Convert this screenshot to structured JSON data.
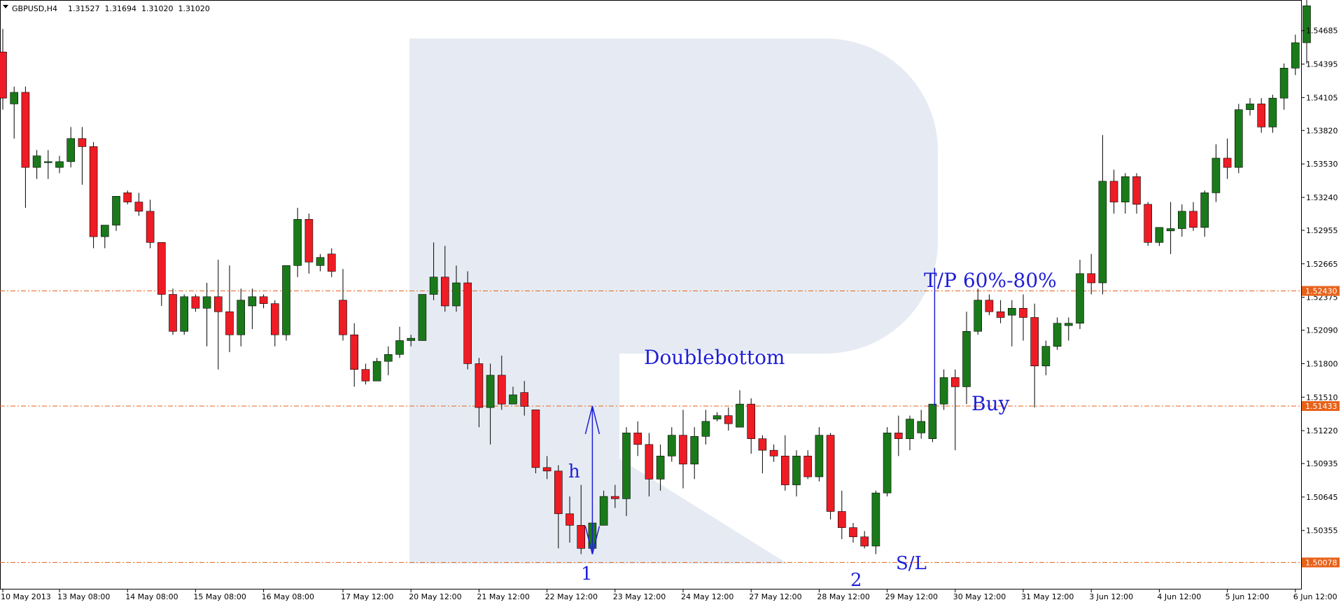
{
  "header": {
    "symbol": "GBPUSD,H4",
    "ohlc": "1.31527  1.31694  1.31020  1.31020"
  },
  "colors": {
    "bull": "#1a7a1a",
    "bear": "#ee1c24",
    "level_line": "#e8621a",
    "annotation": "#1f1fd6",
    "watermark": "#e6ebf3"
  },
  "chart_data": {
    "type": "candlestick",
    "title": "",
    "symbol": "GBPUSD",
    "timeframe": "H4",
    "ylim": [
      1.4985,
      1.5495
    ],
    "y_ticks": [
      "1.54685",
      "1.54395",
      "1.54105",
      "1.53820",
      "1.53530",
      "1.53240",
      "1.52955",
      "1.52665",
      "1.52375",
      "1.52090",
      "1.51800",
      "1.51510",
      "1.51220",
      "1.50935",
      "1.50645",
      "1.50355"
    ],
    "x_labels": [
      {
        "label": "10 May 2013",
        "bar": 0
      },
      {
        "label": "13 May 08:00",
        "bar": 5
      },
      {
        "label": "14 May 08:00",
        "bar": 11
      },
      {
        "label": "15 May 08:00",
        "bar": 17
      },
      {
        "label": "16 May 08:00",
        "bar": 23
      },
      {
        "label": "17 May 12:00",
        "bar": 30
      },
      {
        "label": "20 May 12:00",
        "bar": 36
      },
      {
        "label": "21 May 12:00",
        "bar": 42
      },
      {
        "label": "22 May 12:00",
        "bar": 48
      },
      {
        "label": "23 May 12:00",
        "bar": 54
      },
      {
        "label": "24 May 12:00",
        "bar": 60
      },
      {
        "label": "27 May 12:00",
        "bar": 66
      },
      {
        "label": "28 May 12:00",
        "bar": 72
      },
      {
        "label": "29 May 12:00",
        "bar": 78
      },
      {
        "label": "30 May 12:00",
        "bar": 84
      },
      {
        "label": "31 May 12:00",
        "bar": 90
      },
      {
        "label": "3 Jun 12:00",
        "bar": 96
      },
      {
        "label": "4 Jun 12:00",
        "bar": 102
      },
      {
        "label": "5 Jun 12:00",
        "bar": 108
      },
      {
        "label": "6 Jun 12:00",
        "bar": 114
      }
    ],
    "levels": [
      {
        "price": 1.5243,
        "label": "1.52430"
      },
      {
        "price": 1.51433,
        "label": "1.51433"
      },
      {
        "price": 1.50078,
        "label": "1.50078"
      }
    ],
    "candles": [
      {
        "o": 1.545,
        "h": 1.547,
        "l": 1.54,
        "c": 1.541
      },
      {
        "o": 1.5405,
        "h": 1.542,
        "l": 1.5375,
        "c": 1.5415
      },
      {
        "o": 1.5415,
        "h": 1.542,
        "l": 1.5315,
        "c": 1.535
      },
      {
        "o": 1.535,
        "h": 1.5365,
        "l": 1.534,
        "c": 1.536
      },
      {
        "o": 1.5355,
        "h": 1.5365,
        "l": 1.534,
        "c": 1.5355
      },
      {
        "o": 1.535,
        "h": 1.536,
        "l": 1.5345,
        "c": 1.5355
      },
      {
        "o": 1.5355,
        "h": 1.5385,
        "l": 1.535,
        "c": 1.5375
      },
      {
        "o": 1.5375,
        "h": 1.5385,
        "l": 1.5335,
        "c": 1.5368
      },
      {
        "o": 1.5368,
        "h": 1.5372,
        "l": 1.528,
        "c": 1.529
      },
      {
        "o": 1.529,
        "h": 1.53,
        "l": 1.528,
        "c": 1.53
      },
      {
        "o": 1.53,
        "h": 1.5325,
        "l": 1.5295,
        "c": 1.5325
      },
      {
        "o": 1.5328,
        "h": 1.533,
        "l": 1.5318,
        "c": 1.532
      },
      {
        "o": 1.532,
        "h": 1.5328,
        "l": 1.5308,
        "c": 1.5312
      },
      {
        "o": 1.5312,
        "h": 1.5322,
        "l": 1.528,
        "c": 1.5285
      },
      {
        "o": 1.5285,
        "h": 1.5285,
        "l": 1.523,
        "c": 1.524
      },
      {
        "o": 1.524,
        "h": 1.5245,
        "l": 1.5205,
        "c": 1.5208
      },
      {
        "o": 1.5208,
        "h": 1.524,
        "l": 1.5205,
        "c": 1.5238
      },
      {
        "o": 1.5238,
        "h": 1.524,
        "l": 1.5225,
        "c": 1.5228
      },
      {
        "o": 1.5228,
        "h": 1.525,
        "l": 1.5195,
        "c": 1.5238
      },
      {
        "o": 1.5238,
        "h": 1.527,
        "l": 1.5175,
        "c": 1.5225
      },
      {
        "o": 1.5225,
        "h": 1.5265,
        "l": 1.519,
        "c": 1.5205
      },
      {
        "o": 1.5205,
        "h": 1.5245,
        "l": 1.5195,
        "c": 1.5235
      },
      {
        "o": 1.523,
        "h": 1.5245,
        "l": 1.521,
        "c": 1.5238
      },
      {
        "o": 1.5238,
        "h": 1.524,
        "l": 1.5228,
        "c": 1.5232
      },
      {
        "o": 1.5232,
        "h": 1.5235,
        "l": 1.5195,
        "c": 1.5205
      },
      {
        "o": 1.5205,
        "h": 1.5265,
        "l": 1.52,
        "c": 1.5265
      },
      {
        "o": 1.5265,
        "h": 1.5315,
        "l": 1.5255,
        "c": 1.5305
      },
      {
        "o": 1.5305,
        "h": 1.531,
        "l": 1.5258,
        "c": 1.5268
      },
      {
        "o": 1.5265,
        "h": 1.5275,
        "l": 1.526,
        "c": 1.5272
      },
      {
        "o": 1.5275,
        "h": 1.528,
        "l": 1.5255,
        "c": 1.526
      },
      {
        "o": 1.5235,
        "h": 1.5262,
        "l": 1.52,
        "c": 1.5205
      },
      {
        "o": 1.5205,
        "h": 1.5215,
        "l": 1.516,
        "c": 1.5175
      },
      {
        "o": 1.5175,
        "h": 1.518,
        "l": 1.5162,
        "c": 1.5165
      },
      {
        "o": 1.5165,
        "h": 1.5185,
        "l": 1.5165,
        "c": 1.5182
      },
      {
        "o": 1.5182,
        "h": 1.5195,
        "l": 1.517,
        "c": 1.5188
      },
      {
        "o": 1.5188,
        "h": 1.5212,
        "l": 1.5185,
        "c": 1.52
      },
      {
        "o": 1.52,
        "h": 1.5205,
        "l": 1.5195,
        "c": 1.5202
      },
      {
        "o": 1.52,
        "h": 1.524,
        "l": 1.52,
        "c": 1.524
      },
      {
        "o": 1.524,
        "h": 1.5285,
        "l": 1.5235,
        "c": 1.5255
      },
      {
        "o": 1.5255,
        "h": 1.5282,
        "l": 1.5225,
        "c": 1.523
      },
      {
        "o": 1.523,
        "h": 1.5265,
        "l": 1.5225,
        "c": 1.525
      },
      {
        "o": 1.525,
        "h": 1.526,
        "l": 1.5175,
        "c": 1.518
      },
      {
        "o": 1.518,
        "h": 1.5185,
        "l": 1.5125,
        "c": 1.5142
      },
      {
        "o": 1.5142,
        "h": 1.518,
        "l": 1.511,
        "c": 1.517
      },
      {
        "o": 1.517,
        "h": 1.5187,
        "l": 1.514,
        "c": 1.5145
      },
      {
        "o": 1.5145,
        "h": 1.516,
        "l": 1.515,
        "c": 1.5153
      },
      {
        "o": 1.5155,
        "h": 1.5165,
        "l": 1.5135,
        "c": 1.5143
      },
      {
        "o": 1.514,
        "h": 1.514,
        "l": 1.5085,
        "c": 1.509
      },
      {
        "o": 1.509,
        "h": 1.51,
        "l": 1.508,
        "c": 1.5087
      },
      {
        "o": 1.5087,
        "h": 1.5092,
        "l": 1.502,
        "c": 1.505
      },
      {
        "o": 1.505,
        "h": 1.5065,
        "l": 1.5025,
        "c": 1.504
      },
      {
        "o": 1.504,
        "h": 1.5075,
        "l": 1.5015,
        "c": 1.502
      },
      {
        "o": 1.502,
        "h": 1.5045,
        "l": 1.502,
        "c": 1.5042
      },
      {
        "o": 1.504,
        "h": 1.507,
        "l": 1.504,
        "c": 1.5065
      },
      {
        "o": 1.5065,
        "h": 1.5075,
        "l": 1.5055,
        "c": 1.5063
      },
      {
        "o": 1.5063,
        "h": 1.5125,
        "l": 1.5048,
        "c": 1.512
      },
      {
        "o": 1.512,
        "h": 1.513,
        "l": 1.51,
        "c": 1.511
      },
      {
        "o": 1.511,
        "h": 1.512,
        "l": 1.5065,
        "c": 1.508
      },
      {
        "o": 1.508,
        "h": 1.511,
        "l": 1.507,
        "c": 1.51
      },
      {
        "o": 1.51,
        "h": 1.5125,
        "l": 1.5095,
        "c": 1.5118
      },
      {
        "o": 1.5118,
        "h": 1.514,
        "l": 1.5072,
        "c": 1.5093
      },
      {
        "o": 1.5093,
        "h": 1.5125,
        "l": 1.508,
        "c": 1.5117
      },
      {
        "o": 1.5117,
        "h": 1.514,
        "l": 1.511,
        "c": 1.513
      },
      {
        "o": 1.5132,
        "h": 1.5138,
        "l": 1.513,
        "c": 1.5135
      },
      {
        "o": 1.5135,
        "h": 1.5142,
        "l": 1.5122,
        "c": 1.5128
      },
      {
        "o": 1.5125,
        "h": 1.5157,
        "l": 1.5125,
        "c": 1.5145
      },
      {
        "o": 1.5145,
        "h": 1.515,
        "l": 1.5102,
        "c": 1.5115
      },
      {
        "o": 1.5115,
        "h": 1.5118,
        "l": 1.5085,
        "c": 1.5105
      },
      {
        "o": 1.5105,
        "h": 1.511,
        "l": 1.5095,
        "c": 1.51
      },
      {
        "o": 1.51,
        "h": 1.5118,
        "l": 1.507,
        "c": 1.5075
      },
      {
        "o": 1.5075,
        "h": 1.5105,
        "l": 1.5065,
        "c": 1.51
      },
      {
        "o": 1.51,
        "h": 1.5105,
        "l": 1.508,
        "c": 1.5082
      },
      {
        "o": 1.5082,
        "h": 1.5125,
        "l": 1.5078,
        "c": 1.5118
      },
      {
        "o": 1.5118,
        "h": 1.512,
        "l": 1.5045,
        "c": 1.5052
      },
      {
        "o": 1.5052,
        "h": 1.507,
        "l": 1.5028,
        "c": 1.5038
      },
      {
        "o": 1.5038,
        "h": 1.5042,
        "l": 1.5025,
        "c": 1.503
      },
      {
        "o": 1.503,
        "h": 1.5035,
        "l": 1.502,
        "c": 1.5022
      },
      {
        "o": 1.5022,
        "h": 1.507,
        "l": 1.5015,
        "c": 1.5068
      },
      {
        "o": 1.5068,
        "h": 1.5125,
        "l": 1.5065,
        "c": 1.512
      },
      {
        "o": 1.512,
        "h": 1.5135,
        "l": 1.51,
        "c": 1.5115
      },
      {
        "o": 1.5115,
        "h": 1.5135,
        "l": 1.5105,
        "c": 1.5132
      },
      {
        "o": 1.512,
        "h": 1.514,
        "l": 1.5115,
        "c": 1.513
      },
      {
        "o": 1.5115,
        "h": 1.514,
        "l": 1.5112,
        "c": 1.5145
      },
      {
        "o": 1.5145,
        "h": 1.5175,
        "l": 1.514,
        "c": 1.5168
      },
      {
        "o": 1.5168,
        "h": 1.5175,
        "l": 1.5105,
        "c": 1.516
      },
      {
        "o": 1.516,
        "h": 1.5225,
        "l": 1.5145,
        "c": 1.5208
      },
      {
        "o": 1.5208,
        "h": 1.5245,
        "l": 1.5205,
        "c": 1.5235
      },
      {
        "o": 1.5235,
        "h": 1.524,
        "l": 1.5222,
        "c": 1.5225
      },
      {
        "o": 1.5225,
        "h": 1.5235,
        "l": 1.5215,
        "c": 1.522
      },
      {
        "o": 1.5222,
        "h": 1.5235,
        "l": 1.5195,
        "c": 1.5228
      },
      {
        "o": 1.5228,
        "h": 1.524,
        "l": 1.52,
        "c": 1.522
      },
      {
        "o": 1.522,
        "h": 1.5232,
        "l": 1.5142,
        "c": 1.5178
      },
      {
        "o": 1.5178,
        "h": 1.52,
        "l": 1.517,
        "c": 1.5195
      },
      {
        "o": 1.5195,
        "h": 1.522,
        "l": 1.5192,
        "c": 1.5215
      },
      {
        "o": 1.5213,
        "h": 1.522,
        "l": 1.52,
        "c": 1.5215
      },
      {
        "o": 1.5215,
        "h": 1.527,
        "l": 1.521,
        "c": 1.5258
      },
      {
        "o": 1.5258,
        "h": 1.5275,
        "l": 1.524,
        "c": 1.525
      },
      {
        "o": 1.525,
        "h": 1.5378,
        "l": 1.524,
        "c": 1.5338
      },
      {
        "o": 1.5338,
        "h": 1.5348,
        "l": 1.531,
        "c": 1.532
      },
      {
        "o": 1.532,
        "h": 1.5345,
        "l": 1.531,
        "c": 1.5342
      },
      {
        "o": 1.5342,
        "h": 1.5345,
        "l": 1.531,
        "c": 1.5318
      },
      {
        "o": 1.5318,
        "h": 1.532,
        "l": 1.5282,
        "c": 1.5285
      },
      {
        "o": 1.5285,
        "h": 1.5298,
        "l": 1.5282,
        "c": 1.5298
      },
      {
        "o": 1.5295,
        "h": 1.532,
        "l": 1.5275,
        "c": 1.5297
      },
      {
        "o": 1.5297,
        "h": 1.5318,
        "l": 1.529,
        "c": 1.5312
      },
      {
        "o": 1.5312,
        "h": 1.532,
        "l": 1.5295,
        "c": 1.5298
      },
      {
        "o": 1.5298,
        "h": 1.533,
        "l": 1.529,
        "c": 1.5328
      },
      {
        "o": 1.5328,
        "h": 1.537,
        "l": 1.532,
        "c": 1.5358
      },
      {
        "o": 1.5358,
        "h": 1.5375,
        "l": 1.534,
        "c": 1.535
      },
      {
        "o": 1.535,
        "h": 1.5405,
        "l": 1.5345,
        "c": 1.54
      },
      {
        "o": 1.54,
        "h": 1.541,
        "l": 1.5395,
        "c": 1.5405
      },
      {
        "o": 1.5405,
        "h": 1.541,
        "l": 1.538,
        "c": 1.5385
      },
      {
        "o": 1.5385,
        "h": 1.5413,
        "l": 1.538,
        "c": 1.541
      },
      {
        "o": 1.541,
        "h": 1.544,
        "l": 1.54,
        "c": 1.5436
      },
      {
        "o": 1.5436,
        "h": 1.5465,
        "l": 1.543,
        "c": 1.5458
      },
      {
        "o": 1.5458,
        "h": 1.5495,
        "l": 1.544,
        "c": 1.549
      }
    ]
  },
  "annotations": {
    "pattern": "Doublebottom",
    "height": "h",
    "bottom1": "1",
    "bottom2": "2",
    "take_profit": "T/P 60%-80%",
    "buy": "Buy",
    "stop_loss": "S/L"
  }
}
